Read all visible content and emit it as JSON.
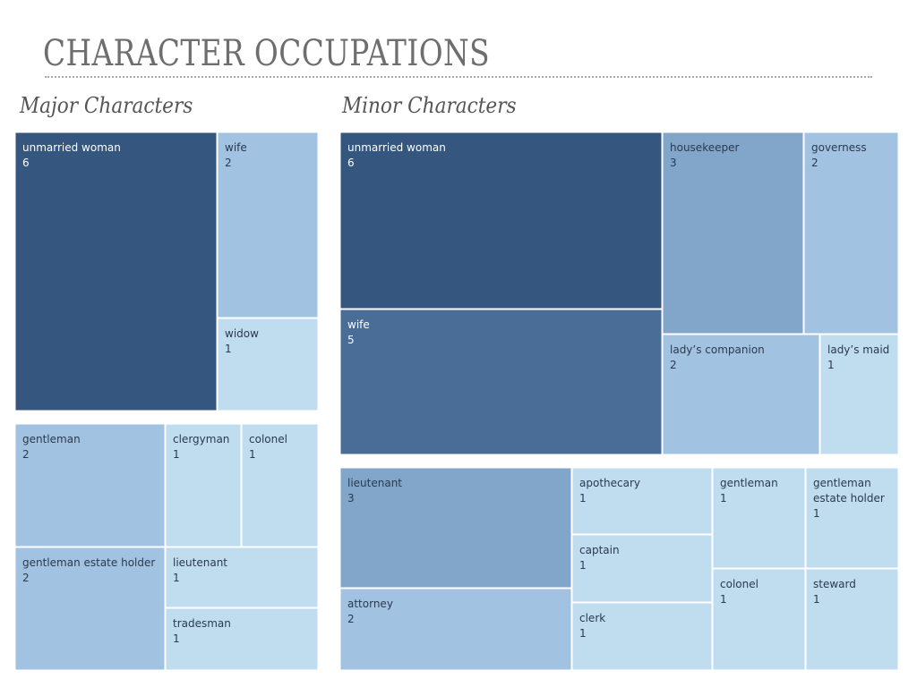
{
  "title": "CHARACTER OCCUPATIONS",
  "panels": {
    "major": {
      "heading": "Major Characters"
    },
    "minor": {
      "heading": "Minor Characters"
    }
  },
  "colors": {
    "6": "#34567f",
    "5": "#4a6d98",
    "3": "#81a6ca",
    "2": "#a1c2e1",
    "1": "#c0dcef",
    "label_dark_bg": "#ffffff",
    "label_light_bg": "#2b3a4e"
  },
  "chart_data": [
    {
      "type": "treemap",
      "title": "Major Characters",
      "groups": [
        {
          "items": [
            {
              "label": "unmarried woman",
              "value": 6
            },
            {
              "label": "wife",
              "value": 2
            },
            {
              "label": "widow",
              "value": 1
            }
          ]
        },
        {
          "items": [
            {
              "label": "gentleman",
              "value": 2
            },
            {
              "label": "clergyman",
              "value": 1
            },
            {
              "label": "colonel",
              "value": 1
            },
            {
              "label": "gentleman estate holder",
              "value": 2
            },
            {
              "label": "lieutenant",
              "value": 1
            },
            {
              "label": "tradesman",
              "value": 1
            }
          ]
        }
      ]
    },
    {
      "type": "treemap",
      "title": "Minor Characters",
      "groups": [
        {
          "items": [
            {
              "label": "unmarried woman",
              "value": 6
            },
            {
              "label": "housekeeper",
              "value": 3
            },
            {
              "label": "governess",
              "value": 2
            },
            {
              "label": "wife",
              "value": 5
            },
            {
              "label": "lady’s companion",
              "value": 2
            },
            {
              "label": "lady’s maid",
              "value": 1
            }
          ]
        },
        {
          "items": [
            {
              "label": "lieutenant",
              "value": 3
            },
            {
              "label": "apothecary",
              "value": 1
            },
            {
              "label": "gentleman",
              "value": 1
            },
            {
              "label": "gentleman estate holder",
              "value": 1
            },
            {
              "label": "captain",
              "value": 1
            },
            {
              "label": "attorney",
              "value": 2
            },
            {
              "label": "clerk",
              "value": 1
            },
            {
              "label": "colonel",
              "value": 1
            },
            {
              "label": "steward",
              "value": 1
            }
          ]
        }
      ]
    }
  ]
}
